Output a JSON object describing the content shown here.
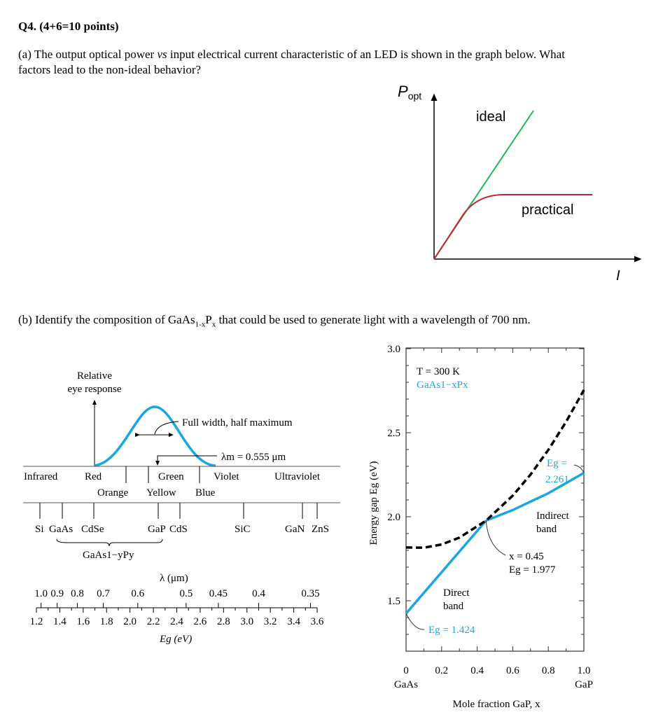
{
  "question": {
    "title": "Q4. (4+6=10 points)",
    "part_a_line1_pre": "(a) The output optical power ",
    "part_a_vs": "vs",
    "part_a_line1_post": " input electrical current characteristic of an LED is shown in the graph below. What",
    "part_a_line2": "factors lead to the non-ideal behavior?",
    "part_b_pre": "(b) Identify the composition of GaAs",
    "part_b_sub1": "1-x",
    "part_b_mid": "P",
    "part_b_sub2": "x",
    "part_b_post": " that could be used to generate light with a wavelength of 700 nm."
  },
  "led_graph": {
    "y_label": "P",
    "y_label_sub": "opt",
    "x_label": "I",
    "ideal_label": "ideal",
    "practical_label": "practical",
    "colors": {
      "ideal": "#1db954",
      "practical": "#c0282d"
    }
  },
  "spectrum": {
    "eye_label_1": "Relative",
    "eye_label_2": "eye response",
    "fwhm_label": "Full width, half maximum",
    "lambda_m_label": "λm = 0.555 μm",
    "bands_top": [
      "Infrared",
      "Red",
      "Green",
      "Violet",
      "Ultraviolet"
    ],
    "bands_bottom": [
      "Orange",
      "Yellow",
      "Blue"
    ],
    "materials": [
      "Si",
      "GaAs",
      "CdSe",
      "GaP",
      "CdS",
      "SiC",
      "GaN",
      "ZnS"
    ],
    "alloy_label": "GaAs1−yPy",
    "lambda_axis_label": "λ (μm)",
    "lambda_ticks": [
      "1.0",
      "0.9",
      "0.8",
      "0.7",
      "0.6",
      "0.5",
      "0.45",
      "0.4",
      "0.35"
    ],
    "eg_ticks": [
      "1.2",
      "1.4",
      "1.6",
      "1.8",
      "2.0",
      "2.2",
      "2.4",
      "2.6",
      "2.8",
      "3.0",
      "3.2",
      "3.4",
      "3.6"
    ],
    "eg_axis_label": "Eg (eV)",
    "curve_color": "#1aa7e0"
  },
  "chart_data": {
    "type": "line",
    "xlabel": "Mole fraction GaP, x",
    "ylabel": "Energy gap Eg (eV)",
    "xlim": [
      0,
      1.0
    ],
    "ylim": [
      1.2,
      3.0
    ],
    "x_ticks": [
      "0",
      "0.2",
      "0.4",
      "0.6",
      "0.8",
      "1.0"
    ],
    "y_ticks": [
      "1.5",
      "2.0",
      "2.5",
      "3.0"
    ],
    "x_end_labels": [
      "GaAs",
      "GaP"
    ],
    "grid": false,
    "series": [
      {
        "name": "Direct band",
        "style": "solid",
        "color": "#1aa7e0",
        "points": [
          [
            0,
            1.424
          ],
          [
            0.45,
            1.977
          ]
        ]
      },
      {
        "name": "Indirect band",
        "style": "solid",
        "color": "#1aa7e0",
        "points": [
          [
            0.45,
            1.977
          ],
          [
            0.6,
            2.04
          ],
          [
            0.8,
            2.14
          ],
          [
            1.0,
            2.261
          ]
        ]
      },
      {
        "style": "dashed",
        "color": "#000000",
        "points": [
          [
            0,
            1.817
          ],
          [
            0.1,
            1.816
          ],
          [
            0.2,
            1.835
          ],
          [
            0.3,
            1.876
          ],
          [
            0.45,
            1.977
          ],
          [
            0.6,
            2.126
          ],
          [
            0.7,
            2.251
          ],
          [
            0.8,
            2.398
          ],
          [
            0.9,
            2.565
          ],
          [
            1.0,
            2.754
          ]
        ]
      }
    ],
    "annotations": {
      "temp": "T = 300 K",
      "material": "GaAs1−xPx",
      "eg_gaas": "Eg = 1.424",
      "eg_gap_1": "Eg =",
      "eg_gap_2": "2.261",
      "cross_x": "x = 0.45",
      "cross_eg": "Eg = 1.977",
      "direct_1": "Direct",
      "direct_2": "band",
      "indirect_1": "Indirect",
      "indirect_2": "band"
    }
  }
}
